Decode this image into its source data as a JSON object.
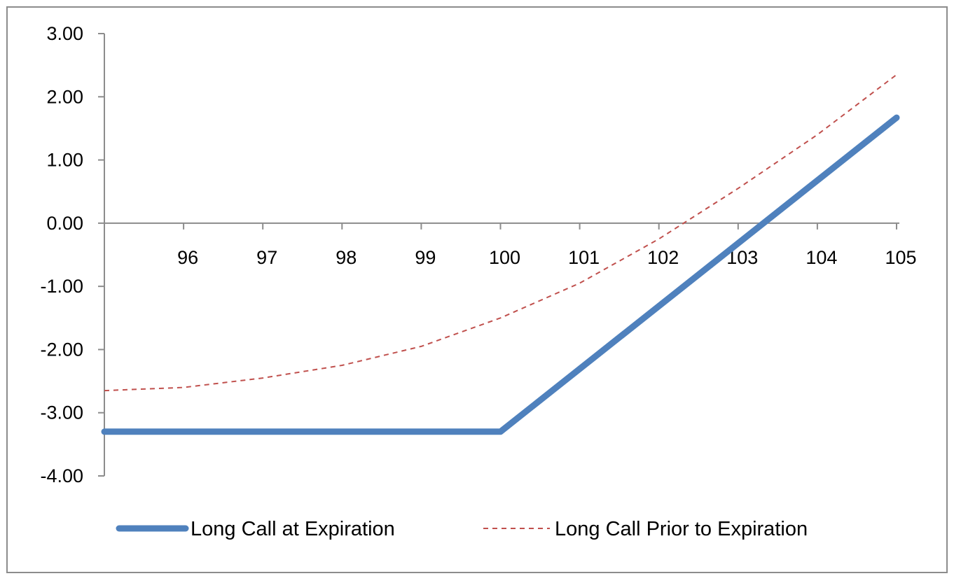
{
  "chart_data": {
    "type": "line",
    "title": "",
    "xlabel": "",
    "ylabel": "",
    "x_ticks": [
      "96",
      "97",
      "98",
      "99",
      "100",
      "101",
      "102",
      "103",
      "104",
      "105"
    ],
    "y_ticks": [
      "3.00",
      "2.00",
      "1.00",
      "0.00",
      "-1.00",
      "-2.00",
      "-3.00",
      "-4.00"
    ],
    "xlim": [
      95,
      105
    ],
    "ylim": [
      -4,
      3
    ],
    "grid": false,
    "legend_position": "bottom",
    "series": [
      {
        "name": "Long Call at Expiration",
        "color": "#4f81bd",
        "style": "solid",
        "x": [
          95,
          100,
          105
        ],
        "y": [
          -3.3,
          -3.3,
          1.67
        ]
      },
      {
        "name": "Long Call Prior to Expiration",
        "color": "#c0504d",
        "style": "dashed",
        "x": [
          95,
          96,
          97,
          98,
          99,
          100,
          101,
          102,
          103,
          104,
          105
        ],
        "y": [
          -2.65,
          -2.6,
          -2.45,
          -2.25,
          -1.95,
          -1.5,
          -0.95,
          -0.25,
          0.55,
          1.4,
          2.35
        ]
      }
    ]
  }
}
